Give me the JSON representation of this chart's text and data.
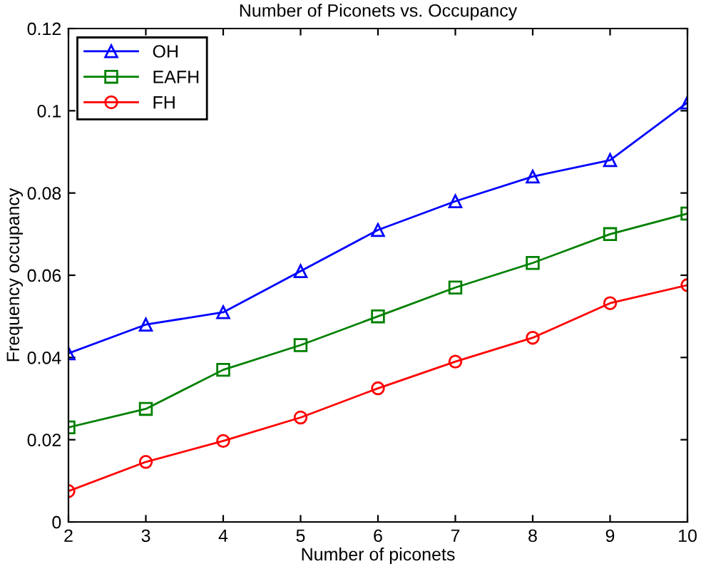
{
  "chart_data": {
    "type": "line",
    "title": "Number of Piconets vs. Occupancy",
    "xlabel": "Number of piconets",
    "ylabel": "Frequency occupancy",
    "x": [
      2,
      3,
      4,
      5,
      6,
      7,
      8,
      9,
      10
    ],
    "series": [
      {
        "name": "OH",
        "color": "#0000ff",
        "marker": "triangle",
        "values": [
          0.041,
          0.048,
          0.051,
          0.061,
          0.071,
          0.078,
          0.084,
          0.088,
          0.102
        ]
      },
      {
        "name": "EAFH",
        "color": "#008000",
        "marker": "square",
        "values": [
          0.023,
          0.0275,
          0.037,
          0.043,
          0.05,
          0.057,
          0.063,
          0.07,
          0.075
        ]
      },
      {
        "name": "FH",
        "color": "#ff0000",
        "marker": "circle",
        "values": [
          0.0075,
          0.0146,
          0.0197,
          0.0254,
          0.0325,
          0.039,
          0.0448,
          0.0532,
          0.0576
        ]
      }
    ],
    "xlim": [
      2,
      10
    ],
    "xticks": [
      2,
      3,
      4,
      5,
      6,
      7,
      8,
      9,
      10
    ],
    "ylim": [
      0,
      0.12
    ],
    "yticks": [
      0,
      0.02,
      0.04,
      0.06,
      0.08,
      0.1,
      0.12
    ],
    "grid": false,
    "legend": "top left",
    "line_style": "solid"
  }
}
